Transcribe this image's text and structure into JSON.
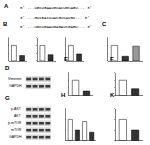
{
  "chart_data": [
    {
      "panel": "B",
      "type": "bar",
      "categories": [
        null,
        null
      ],
      "values": [
        1.0,
        0.35
      ],
      "colors": [
        "#ffffff",
        "#333333"
      ],
      "ylim": [
        0,
        1.5
      ],
      "yticks": [
        0,
        0.5,
        1,
        1.5
      ],
      "tick_labels": false,
      "grid": false
    },
    {
      "panel": "",
      "type": "bar",
      "categories": [
        null,
        null
      ],
      "values": [
        1.0,
        0.4
      ],
      "colors": [
        "#ffffff",
        "#333333"
      ],
      "ylim": [
        0,
        1.5
      ],
      "yticks": [
        0,
        0.5,
        1,
        1.5
      ],
      "tick_labels": false,
      "grid": false
    },
    {
      "panel": "",
      "type": "bar",
      "categories": [
        null,
        null
      ],
      "values": [
        1.0,
        0.45
      ],
      "colors": [
        "#ffffff",
        "#333333"
      ],
      "ylim": [
        0,
        1.5
      ],
      "yticks": [
        0,
        0.5,
        1,
        1.5
      ],
      "tick_labels": false,
      "grid": false
    },
    {
      "panel": "C",
      "type": "bar",
      "categories": [
        null,
        null,
        null
      ],
      "values": [
        1.0,
        0.3,
        0.95
      ],
      "colors": [
        "#ffffff",
        "#333333",
        "#999999"
      ],
      "ylim": [
        0,
        1.5
      ],
      "yticks": [
        0,
        0.5,
        1,
        1.5
      ],
      "tick_labels": false,
      "grid": false
    },
    {
      "panel": "E",
      "type": "bar",
      "categories": [
        null,
        null
      ],
      "values": [
        1.0,
        0.3
      ],
      "colors": [
        "#ffffff",
        "#333333"
      ],
      "ylim": [
        0,
        1.5
      ],
      "yticks": [
        0,
        0.5,
        1,
        1.5
      ],
      "tick_labels": false,
      "grid": false
    },
    {
      "panel": "F",
      "type": "bar",
      "categories": [
        null,
        null
      ],
      "values": [
        1.0,
        0.45
      ],
      "colors": [
        "#ffffff",
        "#333333"
      ],
      "ylim": [
        0,
        1.5
      ],
      "yticks": [
        0,
        0.5,
        1,
        1.5
      ],
      "tick_labels": false,
      "grid": false
    },
    {
      "panel": "H",
      "type": "bar",
      "categories": [
        null,
        null,
        null,
        null
      ],
      "values": [
        1.0,
        0.5,
        0.9,
        0.4
      ],
      "colors": [
        "#ffffff",
        "#333333",
        "#ffffff",
        "#333333"
      ],
      "ylim": [
        0,
        1.5
      ],
      "yticks": [
        0,
        0.5,
        1,
        1.5
      ],
      "tick_labels": false,
      "grid": false
    },
    {
      "panel": "K",
      "type": "bar",
      "categories": [
        null,
        null
      ],
      "values": [
        1.0,
        0.5
      ],
      "colors": [
        "#ffffff",
        "#333333"
      ],
      "ylim": [
        0,
        1.5
      ],
      "yticks": [
        0,
        0.5,
        1,
        1.5
      ],
      "tick_labels": false,
      "grid": false
    }
  ],
  "figure": {
    "sequence_panel": {
      "panel": "A",
      "lines": [
        "5' ...UGCUGAAUGUACUGCAGU... 3'",
        "3' ...GUCGACUUACGUCAUGU... 5'",
        "5' ...UGCUGAAUGAGAUCGAGU... 3'"
      ]
    },
    "blots": [
      {
        "panel": "D",
        "bands": [
          "Vimentin",
          "GAPDH"
        ]
      },
      {
        "panel": "G",
        "bands": [
          "p-AKT",
          "AKT",
          "p-mTOR",
          "mTOR",
          "GAPDH"
        ]
      }
    ]
  }
}
